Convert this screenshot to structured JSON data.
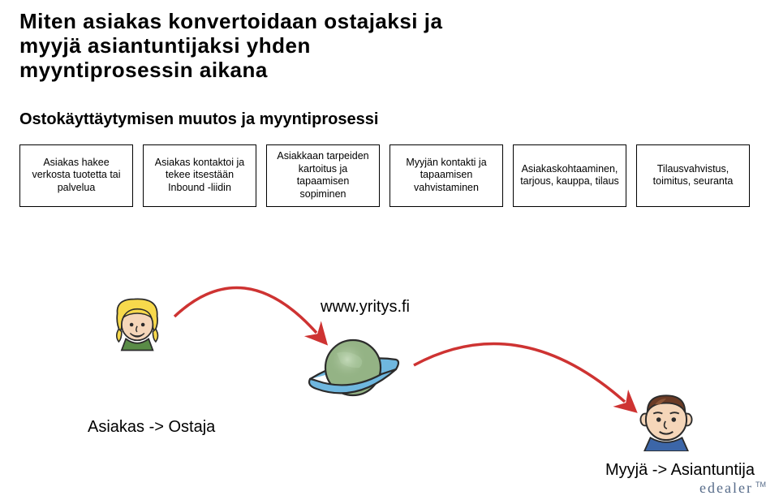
{
  "title": "Miten asiakas konvertoidaan ostajaksi ja\nmyyjä asiantuntijaksi yhden\nmyyntiprosessin aikana",
  "subtitle": "Ostokäyttäytymisen muutos ja myyntiprosessi",
  "process": {
    "boxes": [
      {
        "text": "Asiakas hakee verkosta tuotetta tai  palvelua"
      },
      {
        "text": "Asiakas kontaktoi ja tekee itsestään Inbound -liidin"
      },
      {
        "text": "Asiakkaan tarpeiden kartoitus ja tapaamisen sopiminen"
      },
      {
        "text": "Myyjän kontakti ja tapaamisen vahvistaminen"
      },
      {
        "text": "Asiakaskohtaaminen, tarjous, kauppa, tilaus"
      },
      {
        "text": "Tilausvahvistus, toimitus, seuranta"
      }
    ],
    "border_color": "#000000",
    "font_size": 12.5
  },
  "illustration": {
    "url_text": "www.yritys.fi",
    "customer_label": "Asiakas -> Ostaja",
    "seller_label": "Myyjä -> Asiantuntija",
    "arrow_color": "#ce3332",
    "arrow_stroke_width": 3.5,
    "planet": {
      "globe_color": "#94b385",
      "ring_color": "#6fb7df",
      "outline": "#2b2b2b"
    },
    "customer": {
      "hair_color": "#f7d94c",
      "skin_color": "#f5d6b9",
      "outline": "#2b2b2b",
      "shirt_color": "#5a8c47"
    },
    "seller": {
      "hair_color": "#6b3b25",
      "skin_color": "#f5d6b9",
      "outline": "#2b2b2b",
      "shirt_color": "#3c66a8"
    }
  },
  "logo": {
    "text": "edealer",
    "tm": "TM",
    "color": "#566b89"
  },
  "background_color": "#ffffff"
}
